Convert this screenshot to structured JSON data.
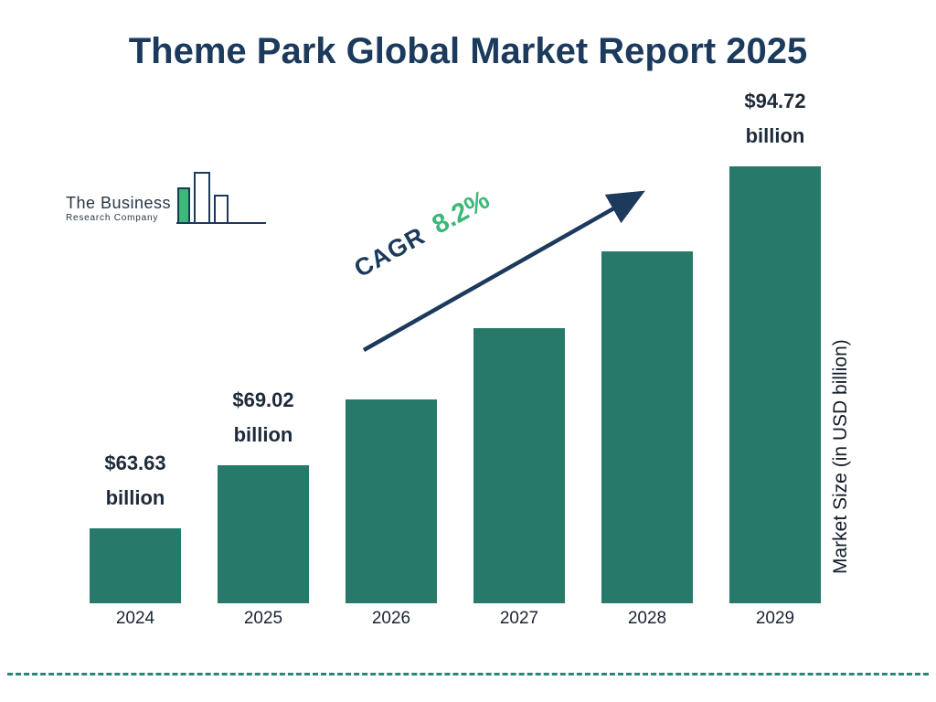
{
  "title": "Theme Park Global Market Report 2025",
  "logo": {
    "line1": "The Business",
    "line2": "Research Company"
  },
  "cagr": {
    "label": "CAGR",
    "value": "8.2%"
  },
  "y_axis_label": "Market Size (in USD billion)",
  "colors": {
    "bar": "#27796a",
    "title_navy": "#1b3a5c",
    "accent_green": "#3cb878",
    "dashed_line": "#2a8576"
  },
  "chart_data": {
    "type": "bar",
    "title": "Theme Park Global Market Report 2025",
    "categories": [
      "2024",
      "2025",
      "2026",
      "2027",
      "2028",
      "2029"
    ],
    "values": [
      63.63,
      69.02,
      74.68,
      80.8,
      87.43,
      94.72
    ],
    "value_labels": [
      {
        "amount": "$63.63",
        "unit": "billion"
      },
      {
        "amount": "$69.02",
        "unit": "billion"
      },
      null,
      null,
      null,
      {
        "amount": "$94.72",
        "unit": "billion"
      }
    ],
    "xlabel": "",
    "ylabel": "Market Size (in USD billion)",
    "annotation": "CAGR 8.2%",
    "legend": "none",
    "grid": false,
    "bar_color": "#27796a",
    "approx_value_range_shown": [
      57.2,
      96
    ]
  }
}
